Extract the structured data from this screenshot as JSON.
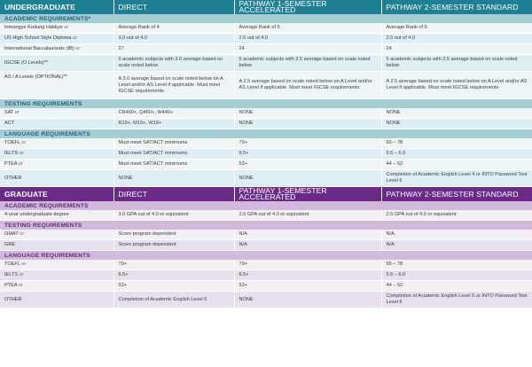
{
  "undergraduate": {
    "header": [
      "UNDERGRADUATE",
      "DIRECT",
      "PATHWAY 1-SEMESTER ACCELERATED",
      "PATHWAY 2-SEMESTER STANDARD"
    ],
    "academic": {
      "title": "ACADEMIC REQUIREMENTS*",
      "rows": [
        {
          "label": "Inmungye Kodung Hakkyo",
          "or": "or",
          "c1": "Average Rank of 4",
          "c2": "Average Rank of 5",
          "c3": "Average Rank of 5"
        },
        {
          "label": "US High School Style Diploma",
          "or": "or",
          "c1": "3.0 out of 4.0",
          "c2": "2.5 out of 4.0",
          "c3": "2.5 out of 4.0"
        },
        {
          "label": "International Baccalaureate (IB)",
          "or": "or",
          "c1": "27",
          "c2": "24",
          "c3": "24"
        },
        {
          "label": "IGCSE (O Levels)**",
          "or": "",
          "c1": "5 academic subjects with 3.0 average based on scale noted below",
          "c2": "5 academic subjects with 2.5 average based on scale noted below",
          "c3": "5 academic subjects with 2.5 average based on scale noted below"
        },
        {
          "label": "AS / A Levels (OPTIONAL)**",
          "or": "",
          "c1": "A 3.0 average based on scale noted below on A Level and/or AS Level if applicable. Must meet IGCSE requirements",
          "c2": "A 2.5 average based on scale noted below on A Level and/or AS Level if applicable. Must meet IGCSE requirements",
          "c3": "A 2.5 average based on scale noted below on A Level and/or AS Level if applicable. Must meet IGCSE requirements"
        }
      ]
    },
    "testing": {
      "title": "TESTING REQUIREMENTS",
      "rows": [
        {
          "label": "SAT",
          "or": "or",
          "c1": "CR460+, Q460+, W440+",
          "c2": "NONE",
          "c3": "NONE"
        },
        {
          "label": "ACT",
          "or": "",
          "c1": "R19+, M19+, W18+",
          "c2": "NONE",
          "c3": "NONE"
        }
      ]
    },
    "language": {
      "title": "LANGUAGE REQUIREMENTS",
      "rows": [
        {
          "label": "TOEFL",
          "or": "or",
          "c1": "Must meet SAT/ACT minimums",
          "c2": "79+",
          "c3": "60 – 78"
        },
        {
          "label": "IELTS",
          "or": "or",
          "c1": "Must meet SAT/ACT minimums",
          "c2": "6.5+",
          "c3": "5.5 – 6.0"
        },
        {
          "label": "PTEA",
          "or": "or",
          "c1": "Must meet SAT/ACT minimums",
          "c2": "53+",
          "c3": "44 – 52"
        },
        {
          "label": "OTHER",
          "or": "",
          "c1": "NONE",
          "c2": "NONE",
          "c3": "Completion of Academic English Level 4 or INTO Password Test Level 6"
        }
      ]
    }
  },
  "graduate": {
    "header": [
      "GRADUATE",
      "DIRECT",
      "PATHWAY 1-SEMESTER ACCELERATED",
      "PATHWAY 2-SEMESTER STANDARD"
    ],
    "academic": {
      "title": "ACADEMIC REQUIREMENTS",
      "rows": [
        {
          "label": "4-year undergraduate degree",
          "or": "",
          "c1": "3.0 GPA out of 4.0 or equivalent",
          "c2": "2.5 GPA out of 4.0 or equivalent",
          "c3": "2.5 GPA out of 4.0 or equivalent"
        }
      ]
    },
    "testing": {
      "title": "TESTING REQUIREMENTS",
      "rows": [
        {
          "label": "GMAT",
          "or": "or",
          "c1": "Score program dependent",
          "c2": "N/A",
          "c3": "N/A"
        },
        {
          "label": "GRE",
          "or": "",
          "c1": "Score program dependent",
          "c2": "N/A",
          "c3": "N/A"
        }
      ]
    },
    "language": {
      "title": "LANGUAGE REQUIREMENTS",
      "rows": [
        {
          "label": "TOEFL",
          "or": "or",
          "c1": "79+",
          "c2": "79+",
          "c3": "65 – 78"
        },
        {
          "label": "IELTS",
          "or": "or",
          "c1": "6.5+",
          "c2": "6.5+",
          "c3": "5.5 – 6.0"
        },
        {
          "label": "PTEA",
          "or": "or",
          "c1": "53+",
          "c2": "53+",
          "c3": "44 – 52"
        },
        {
          "label": "OTHER",
          "or": "",
          "c1": "Completion of Academic English Level 6",
          "c2": "NONE",
          "c3": "Completion of Academic English Level 5 or INTO Password Test Level 6"
        }
      ]
    }
  }
}
